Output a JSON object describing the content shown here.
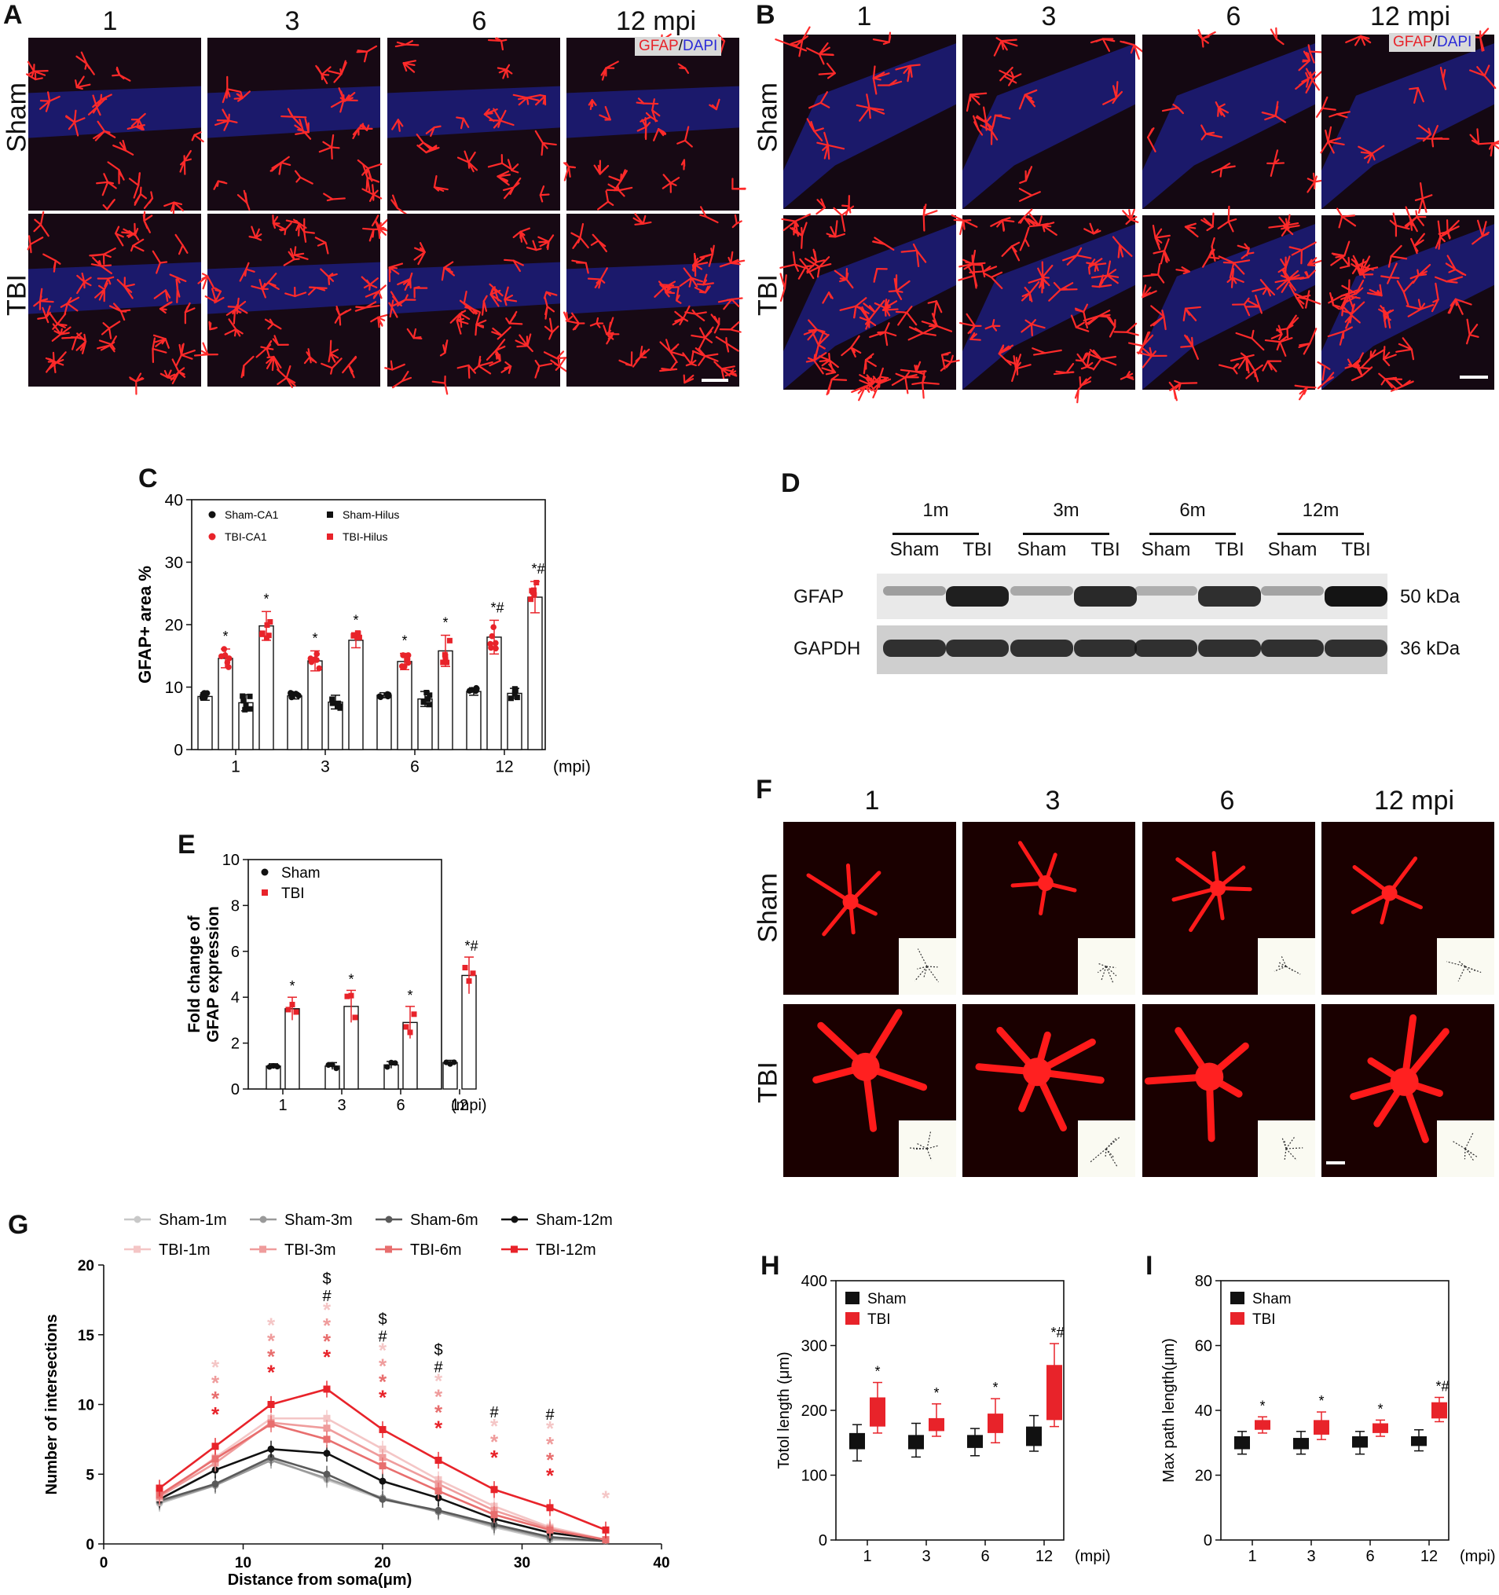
{
  "panel_a": {
    "letter": "A",
    "columns": [
      "1",
      "3",
      "6",
      "12 mpi"
    ],
    "rows": [
      "Sham",
      "TBI"
    ],
    "stain_tag": {
      "gfap": "GFAP",
      "sep": "/",
      "dapi": "DAPI"
    }
  },
  "panel_b": {
    "letter": "B",
    "columns": [
      "1",
      "3",
      "6",
      "12 mpi"
    ],
    "rows": [
      "Sham",
      "TBI"
    ],
    "stain_tag": {
      "gfap": "GFAP",
      "sep": "/",
      "dapi": "DAPI"
    }
  },
  "panel_d": {
    "letter": "D",
    "timepoints": [
      "1m",
      "3m",
      "6m",
      "12m"
    ],
    "lanes": [
      "Sham",
      "TBI",
      "Sham",
      "TBI",
      "Sham",
      "TBI",
      "Sham",
      "TBI"
    ],
    "proteins": [
      {
        "name": "GFAP",
        "size": "50 kDa"
      },
      {
        "name": "GAPDH",
        "size": "36 kDa"
      }
    ]
  },
  "panel_f": {
    "letter": "F",
    "columns": [
      "1",
      "3",
      "6",
      "12 mpi"
    ],
    "rows": [
      "Sham",
      "TBI"
    ]
  },
  "colors": {
    "tbi_red": "#e8232a",
    "sham_black": "#111111",
    "gfap_red": "#ff2020",
    "dapi_blue": "#2020a0"
  },
  "chart_data": [
    {
      "id": "C",
      "letter": "C",
      "type": "bar",
      "ylabel": "GFAP+ area %",
      "xlabel": "(mpi)",
      "ylim": [
        0,
        40
      ],
      "yticks": [
        "0",
        "10",
        "20",
        "30",
        "40"
      ],
      "categories": [
        "1",
        "3",
        "6",
        "12"
      ],
      "series": [
        {
          "name": "Sham-CA1",
          "marker": "circle",
          "color": "#111111",
          "values": [
            8.5,
            8.6,
            8.7,
            9.3
          ],
          "err": [
            0.6,
            0.5,
            0.4,
            0.6
          ]
        },
        {
          "name": "TBI-CA1",
          "marker": "circle",
          "color": "#e8232a",
          "values": [
            14.6,
            14.2,
            14.1,
            18.0
          ],
          "err": [
            1.5,
            1.6,
            1.3,
            2.7
          ]
        },
        {
          "name": "Sham-Hilus",
          "marker": "square",
          "color": "#111111",
          "values": [
            7.5,
            7.6,
            8.1,
            9.0
          ],
          "err": [
            1.3,
            1.1,
            1.2,
            0.8
          ]
        },
        {
          "name": "TBI-Hilus",
          "marker": "square",
          "color": "#e8232a",
          "values": [
            19.8,
            17.5,
            15.8,
            24.4
          ],
          "err": [
            2.3,
            1.2,
            2.5,
            2.5
          ]
        }
      ],
      "annotations": [
        {
          "category": "1",
          "series": "TBI-CA1",
          "text": "*"
        },
        {
          "category": "1",
          "series": "TBI-Hilus",
          "text": "*"
        },
        {
          "category": "3",
          "series": "TBI-CA1",
          "text": "*"
        },
        {
          "category": "3",
          "series": "TBI-Hilus",
          "text": "*"
        },
        {
          "category": "6",
          "series": "TBI-CA1",
          "text": "*"
        },
        {
          "category": "6",
          "series": "TBI-Hilus",
          "text": "*"
        },
        {
          "category": "12",
          "series": "TBI-CA1",
          "text": "*#"
        },
        {
          "category": "12",
          "series": "TBI-Hilus",
          "text": "*#"
        }
      ]
    },
    {
      "id": "E",
      "letter": "E",
      "type": "bar",
      "ylabel": "Fold change of GFAP expression",
      "ylabel_lines": [
        "Fold change of",
        "GFAP expression"
      ],
      "xlabel": "(mpi)",
      "ylim": [
        0,
        10
      ],
      "yticks": [
        "0",
        "2",
        "4",
        "6",
        "8",
        "10"
      ],
      "categories": [
        "1",
        "3",
        "6",
        "12"
      ],
      "series": [
        {
          "name": "Sham",
          "color": "#111111",
          "values": [
            1.0,
            1.0,
            1.05,
            1.15
          ],
          "err": [
            0.1,
            0.15,
            0.15,
            0.1
          ]
        },
        {
          "name": "TBI",
          "color": "#e8232a",
          "values": [
            3.5,
            3.6,
            2.9,
            4.95
          ],
          "err": [
            0.5,
            0.7,
            0.7,
            0.8
          ]
        }
      ],
      "annotations": [
        {
          "category": "1",
          "text": "*"
        },
        {
          "category": "3",
          "text": "*"
        },
        {
          "category": "6",
          "text": "*"
        },
        {
          "category": "12",
          "text": "*#"
        }
      ]
    },
    {
      "id": "G",
      "letter": "G",
      "type": "line",
      "xlabel": "Distance from soma(μm)",
      "ylabel": "Number of intersections",
      "xlim": [
        0,
        40
      ],
      "ylim": [
        0,
        20
      ],
      "xticks": [
        "0",
        "10",
        "20",
        "30",
        "40"
      ],
      "yticks": [
        "0",
        "5",
        "10",
        "15",
        "20"
      ],
      "x": [
        4,
        8,
        12,
        16,
        20,
        24,
        28,
        32,
        36
      ],
      "series": [
        {
          "name": "Sham-1m",
          "color": "#c8c8c8",
          "values": [
            2.9,
            4.2,
            6.1,
            4.6,
            3.2,
            2.3,
            1.2,
            0.3,
            0.2
          ]
        },
        {
          "name": "Sham-3m",
          "color": "#9a9a9a",
          "values": [
            3.0,
            4.2,
            6.0,
            4.7,
            3.3,
            2.3,
            1.3,
            0.4,
            0.2
          ]
        },
        {
          "name": "Sham-6m",
          "color": "#5a5a5a",
          "values": [
            3.1,
            4.3,
            6.2,
            5.0,
            3.2,
            2.4,
            1.4,
            0.5,
            0.2
          ]
        },
        {
          "name": "Sham-12m",
          "color": "#111111",
          "values": [
            3.2,
            5.3,
            6.8,
            6.5,
            4.5,
            3.3,
            1.8,
            0.8,
            0.3
          ]
        },
        {
          "name": "TBI-1m",
          "color": "#f4c6c6",
          "values": [
            3.3,
            6.2,
            9.0,
            9.0,
            6.8,
            4.6,
            2.7,
            1.2,
            0.3
          ]
        },
        {
          "name": "TBI-3m",
          "color": "#ef9c9c",
          "values": [
            3.4,
            5.8,
            8.7,
            8.3,
            6.2,
            4.3,
            2.4,
            1.1,
            0.3
          ]
        },
        {
          "name": "TBI-6m",
          "color": "#e86e6e",
          "values": [
            3.5,
            6.1,
            8.6,
            7.5,
            5.6,
            3.8,
            2.1,
            1.0,
            0.3
          ]
        },
        {
          "name": "TBI-12m",
          "color": "#e8232a",
          "values": [
            4.0,
            7.0,
            10.0,
            11.1,
            8.2,
            6.0,
            3.9,
            2.6,
            1.0
          ]
        }
      ],
      "marker_labels": [
        {
          "x": 16,
          "text": "$"
        },
        {
          "x": 20,
          "text": "$"
        },
        {
          "x": 24,
          "text": "$"
        },
        {
          "x": 16,
          "text": "#"
        },
        {
          "x": 20,
          "text": "#"
        },
        {
          "x": 24,
          "text": "#"
        },
        {
          "x": 28,
          "text": "#"
        },
        {
          "x": 32,
          "text": "#"
        }
      ]
    },
    {
      "id": "H",
      "letter": "H",
      "type": "box",
      "ylabel": "Totol length (μm)",
      "xlabel": "(mpi)",
      "ylim": [
        0,
        400
      ],
      "yticks": [
        "0",
        "100",
        "200",
        "300",
        "400"
      ],
      "categories": [
        "1",
        "3",
        "6",
        "12"
      ],
      "series": [
        {
          "name": "Sham",
          "color": "#111111",
          "boxes": [
            [
              122,
              140,
              152,
              165,
              178
            ],
            [
              128,
              140,
              150,
              162,
              180
            ],
            [
              130,
              142,
              152,
              162,
              172
            ],
            [
              137,
              145,
              160,
              175,
              192
            ]
          ]
        },
        {
          "name": "TBI",
          "color": "#e8232a",
          "boxes": [
            [
              165,
              175,
              195,
              220,
              243
            ],
            [
              160,
              168,
              178,
              188,
              210
            ],
            [
              150,
              165,
              180,
              195,
              218
            ],
            [
              175,
              185,
              230,
              270,
              303
            ]
          ]
        }
      ],
      "annotations": [
        {
          "category": "1",
          "text": "*"
        },
        {
          "category": "3",
          "text": "*"
        },
        {
          "category": "6",
          "text": "*"
        },
        {
          "category": "12",
          "text": "*#"
        }
      ]
    },
    {
      "id": "I",
      "letter": "I",
      "type": "box",
      "ylabel": "Max path length(μm)",
      "xlabel": "(mpi)",
      "ylim": [
        0,
        80
      ],
      "yticks": [
        "0",
        "20",
        "40",
        "60",
        "80"
      ],
      "categories": [
        "1",
        "3",
        "6",
        "12"
      ],
      "series": [
        {
          "name": "Sham",
          "color": "#111111",
          "boxes": [
            [
              26.5,
              28,
              30,
              32,
              33.5
            ],
            [
              26.5,
              28,
              30,
              31.5,
              33.5
            ],
            [
              26.5,
              28.5,
              30,
              32,
              33.5
            ],
            [
              27.5,
              29,
              30.5,
              32,
              34
            ]
          ]
        },
        {
          "name": "TBI",
          "color": "#e8232a",
          "boxes": [
            [
              33,
              34,
              35.5,
              37,
              38
            ],
            [
              31,
              32.5,
              35,
              37,
              39.5
            ],
            [
              32,
              33,
              34.5,
              36,
              37
            ],
            [
              36.5,
              37.5,
              40,
              42.5,
              44
            ]
          ]
        }
      ],
      "annotations": [
        {
          "category": "1",
          "text": "*"
        },
        {
          "category": "3",
          "text": "*"
        },
        {
          "category": "6",
          "text": "*"
        },
        {
          "category": "12",
          "text": "*#"
        }
      ]
    }
  ]
}
